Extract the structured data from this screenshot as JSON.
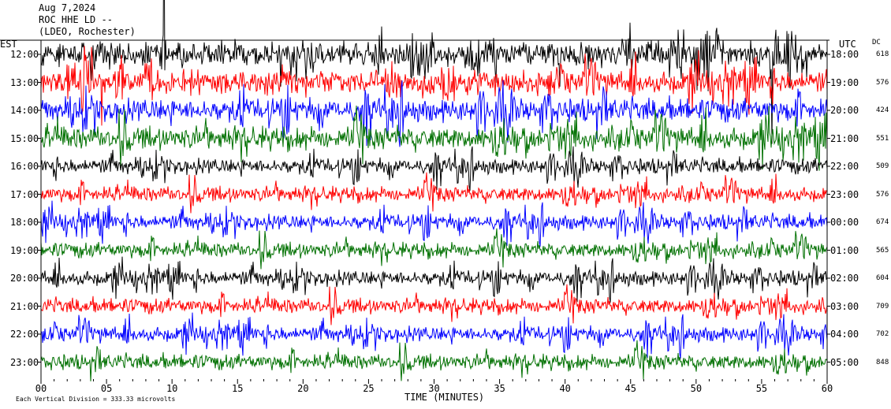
{
  "header": {
    "date": "Aug 7,2024",
    "station": "ROC HHE LD --",
    "location": "(LDEO, Rochester)"
  },
  "left_zone_label": "EST",
  "right_zone_label": "UTC",
  "dc_label": "DC",
  "xlabel": "TIME (MINUTES)",
  "scale_note": "Each Vertical Division = 333.33 microvolts",
  "colors": {
    "trace_cycle": [
      "#000000",
      "#ff0000",
      "#0000ff",
      "#007000"
    ]
  },
  "chart_data": {
    "type": "line",
    "title": "Aug 7,2024 ROC HHE LD -- (LDEO, Rochester)",
    "xlabel": "TIME (MINUTES)",
    "xlim": [
      0,
      60
    ],
    "x_ticks": [
      "00",
      "05",
      "10",
      "15",
      "20",
      "25",
      "30",
      "35",
      "40",
      "45",
      "50",
      "55",
      "60"
    ],
    "grid": false,
    "series": [
      {
        "est": "12:00",
        "utc": "18:00",
        "dc": "618",
        "color": "#000000"
      },
      {
        "est": "13:00",
        "utc": "19:00",
        "dc": "576",
        "color": "#ff0000"
      },
      {
        "est": "14:00",
        "utc": "20:00",
        "dc": "424",
        "color": "#0000ff"
      },
      {
        "est": "15:00",
        "utc": "21:00",
        "dc": "551",
        "color": "#007000"
      },
      {
        "est": "16:00",
        "utc": "22:00",
        "dc": "509",
        "color": "#000000"
      },
      {
        "est": "17:00",
        "utc": "23:00",
        "dc": "576",
        "color": "#ff0000"
      },
      {
        "est": "18:00",
        "utc": "00:00",
        "dc": "674",
        "color": "#0000ff"
      },
      {
        "est": "19:00",
        "utc": "01:00",
        "dc": "565",
        "color": "#007000"
      },
      {
        "est": "20:00",
        "utc": "02:00",
        "dc": "604",
        "color": "#000000"
      },
      {
        "est": "21:00",
        "utc": "03:00",
        "dc": "709",
        "color": "#ff0000"
      },
      {
        "est": "22:00",
        "utc": "04:00",
        "dc": "702",
        "color": "#0000ff"
      },
      {
        "est": "23:00",
        "utc": "05:00",
        "dc": "848",
        "color": "#007000"
      }
    ]
  }
}
